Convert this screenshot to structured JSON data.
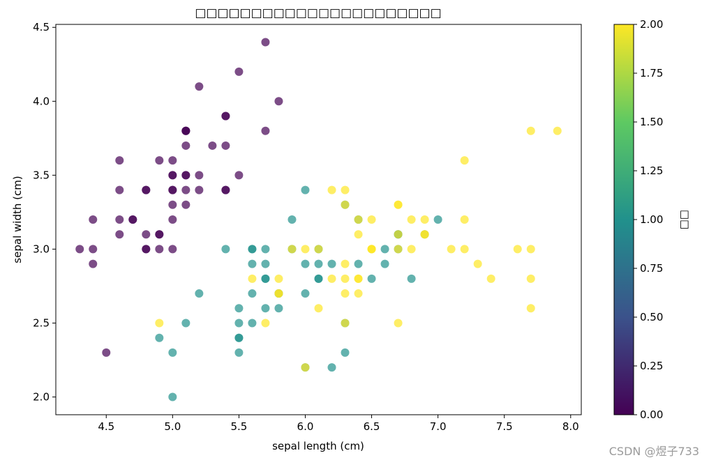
{
  "chart_data": {
    "type": "scatter",
    "title": "□□□□□□□□□□□□□□□□□□□□□□",
    "xlabel": "sepal length (cm)",
    "ylabel": "sepal width (cm)",
    "xlim": [
      4.12,
      8.08
    ],
    "ylim": [
      1.88,
      4.52
    ],
    "xticks": [
      "4.5",
      "5.0",
      "5.5",
      "6.0",
      "6.5",
      "7.0",
      "7.5",
      "8.0"
    ],
    "yticks": [
      "2.0",
      "2.5",
      "3.0",
      "3.5",
      "4.0",
      "4.5"
    ],
    "colorbar": {
      "label": "□□",
      "range": [
        0,
        2
      ],
      "ticks": [
        "0.00",
        "0.25",
        "0.50",
        "0.75",
        "1.00",
        "1.25",
        "1.50",
        "1.75",
        "2.00"
      ],
      "colormap": "viridis",
      "colors": [
        "#440154",
        "#3b528b",
        "#21918c",
        "#5ec962",
        "#fde725"
      ]
    },
    "marker_alpha": 0.7,
    "x": [
      5.1,
      4.9,
      4.7,
      4.6,
      5.0,
      5.4,
      4.6,
      5.0,
      4.4,
      4.9,
      5.4,
      4.8,
      4.8,
      4.3,
      5.8,
      5.7,
      5.4,
      5.1,
      5.7,
      5.1,
      5.4,
      5.1,
      4.6,
      5.1,
      4.8,
      5.0,
      5.0,
      5.2,
      5.2,
      4.7,
      4.8,
      5.4,
      5.2,
      5.5,
      4.9,
      5.0,
      5.5,
      4.9,
      4.4,
      5.1,
      5.0,
      4.5,
      4.4,
      5.0,
      5.1,
      4.8,
      5.1,
      4.6,
      5.3,
      5.0,
      7.0,
      6.4,
      6.9,
      5.5,
      6.5,
      5.7,
      6.3,
      4.9,
      6.6,
      5.2,
      5.0,
      5.9,
      6.0,
      6.1,
      5.6,
      6.7,
      5.6,
      5.8,
      6.2,
      5.6,
      5.9,
      6.1,
      6.3,
      6.1,
      6.4,
      6.6,
      6.8,
      6.7,
      6.0,
      5.7,
      5.5,
      5.5,
      5.8,
      6.0,
      5.4,
      6.0,
      6.7,
      6.3,
      5.6,
      5.5,
      5.5,
      6.1,
      5.8,
      5.0,
      5.6,
      5.7,
      5.7,
      6.2,
      5.1,
      5.7,
      6.3,
      5.8,
      7.1,
      6.3,
      6.5,
      7.6,
      4.9,
      7.3,
      6.7,
      7.2,
      6.5,
      6.4,
      6.8,
      5.7,
      5.8,
      6.4,
      6.5,
      7.7,
      7.7,
      6.0,
      6.9,
      5.6,
      7.7,
      6.3,
      6.7,
      7.2,
      6.2,
      6.1,
      6.4,
      7.2,
      7.4,
      7.9,
      6.4,
      6.3,
      6.1,
      7.7,
      6.3,
      6.4,
      6.0,
      6.9,
      6.7,
      6.9,
      5.8,
      6.8,
      6.7,
      6.7,
      6.3,
      6.5,
      6.2,
      5.9
    ],
    "y": [
      3.5,
      3.0,
      3.2,
      3.1,
      3.6,
      3.9,
      3.4,
      3.4,
      2.9,
      3.1,
      3.7,
      3.4,
      3.0,
      3.0,
      4.0,
      4.4,
      3.9,
      3.5,
      3.8,
      3.8,
      3.4,
      3.7,
      3.6,
      3.3,
      3.4,
      3.0,
      3.4,
      3.5,
      3.4,
      3.2,
      3.1,
      3.4,
      4.1,
      4.2,
      3.1,
      3.2,
      3.5,
      3.6,
      3.0,
      3.4,
      3.5,
      2.3,
      3.2,
      3.5,
      3.8,
      3.0,
      3.8,
      3.2,
      3.7,
      3.3,
      3.2,
      3.2,
      3.1,
      2.3,
      2.8,
      2.8,
      3.3,
      2.4,
      2.9,
      2.7,
      2.0,
      3.0,
      2.2,
      2.9,
      2.9,
      3.1,
      3.0,
      2.7,
      2.2,
      2.5,
      3.2,
      2.8,
      2.5,
      2.8,
      2.9,
      3.0,
      2.8,
      3.0,
      2.9,
      2.6,
      2.4,
      2.4,
      2.7,
      2.7,
      3.0,
      3.4,
      3.1,
      2.3,
      3.0,
      2.5,
      2.6,
      3.0,
      2.6,
      2.3,
      2.7,
      3.0,
      2.9,
      2.9,
      2.5,
      2.8,
      3.3,
      2.7,
      3.0,
      2.9,
      3.0,
      3.0,
      2.5,
      2.9,
      2.5,
      3.6,
      3.2,
      2.7,
      3.0,
      2.5,
      2.8,
      3.2,
      3.0,
      3.8,
      2.6,
      2.2,
      3.2,
      2.8,
      2.8,
      2.7,
      3.3,
      3.2,
      2.8,
      3.0,
      2.8,
      3.0,
      2.8,
      3.8,
      2.8,
      2.8,
      2.6,
      3.0,
      3.4,
      3.1,
      3.0,
      3.1,
      3.1,
      3.1,
      2.7,
      3.2,
      3.3,
      3.0,
      2.5,
      3.0,
      3.4,
      3.0
    ],
    "c": [
      0,
      0,
      0,
      0,
      0,
      0,
      0,
      0,
      0,
      0,
      0,
      0,
      0,
      0,
      0,
      0,
      0,
      0,
      0,
      0,
      0,
      0,
      0,
      0,
      0,
      0,
      0,
      0,
      0,
      0,
      0,
      0,
      0,
      0,
      0,
      0,
      0,
      0,
      0,
      0,
      0,
      0,
      0,
      0,
      0,
      0,
      0,
      0,
      0,
      0,
      1,
      1,
      1,
      1,
      1,
      1,
      1,
      1,
      1,
      1,
      1,
      1,
      1,
      1,
      1,
      1,
      1,
      1,
      1,
      1,
      1,
      1,
      1,
      1,
      1,
      1,
      1,
      1,
      1,
      1,
      1,
      1,
      1,
      1,
      1,
      1,
      1,
      1,
      1,
      1,
      1,
      1,
      1,
      1,
      1,
      1,
      1,
      1,
      1,
      1,
      2,
      2,
      2,
      2,
      2,
      2,
      2,
      2,
      2,
      2,
      2,
      2,
      2,
      2,
      2,
      2,
      2,
      2,
      2,
      2,
      2,
      2,
      2,
      2,
      2,
      2,
      2,
      2,
      2,
      2,
      2,
      2,
      2,
      2,
      2,
      2,
      2,
      2,
      2,
      2,
      2,
      2,
      2,
      2,
      2,
      2,
      2,
      2,
      2,
      2
    ]
  },
  "watermark": "CSDN @煜子733"
}
